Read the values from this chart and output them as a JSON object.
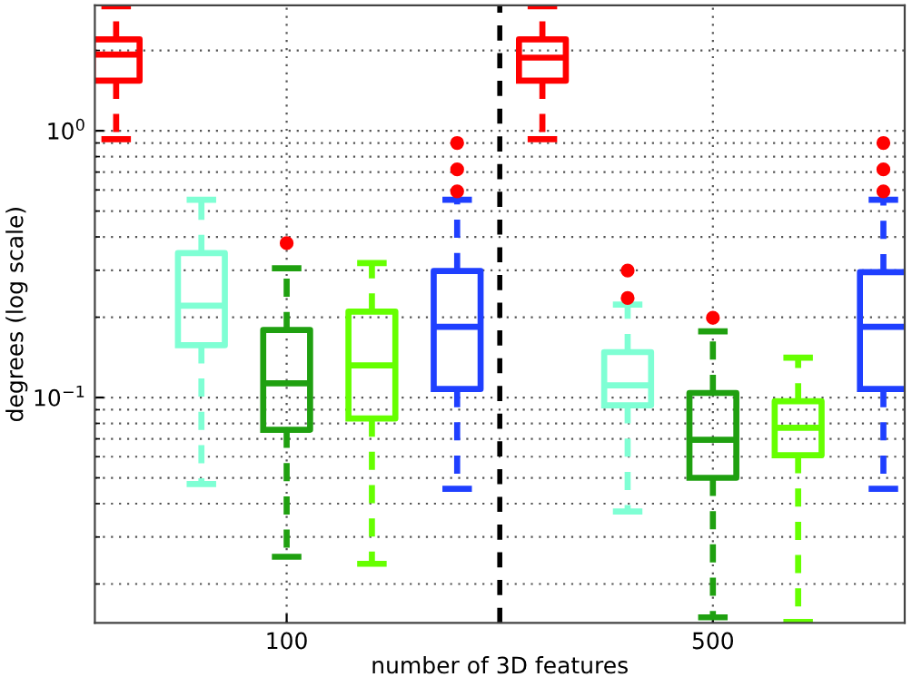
{
  "chart_data": {
    "type": "box",
    "xlabel": "number of 3D features",
    "ylabel": "degrees (log scale)",
    "log": "y",
    "grid": true,
    "line_style": "dashed",
    "legend": false,
    "categories": [
      null,
      null,
      "100",
      null,
      null,
      null,
      null,
      "500",
      null,
      null
    ],
    "ylim": [
      0.0143,
      2.95
    ],
    "yticks": [
      {
        "value": 0.1,
        "label": "10$^{−1}$"
      },
      {
        "value": 1,
        "label": "10$^{0}$"
      }
    ],
    "colors": [
      "#ff0000",
      "#7fffd4",
      "#1fa010",
      "#66ff00",
      "#1f3fff",
      "#ff0000",
      "#7fffd4",
      "#1fa010",
      "#66ff00",
      "#1f3fff"
    ],
    "boxes": [
      {
        "low": 0.93,
        "q1": 1.54,
        "median": 1.93,
        "q3": 2.2,
        "high": 2.93
      },
      {
        "low": 0.0474,
        "q1": 0.157,
        "median": 0.221,
        "q3": 0.348,
        "high": 0.551
      },
      {
        "low": 0.0253,
        "q1": 0.0757,
        "median": 0.113,
        "q3": 0.179,
        "high": 0.305,
        "outliers": [
          0.379
        ]
      },
      {
        "low": 0.0238,
        "q1": 0.0834,
        "median": 0.132,
        "q3": 0.21,
        "high": 0.319
      },
      {
        "low": 0.0455,
        "q1": 0.1076,
        "median": 0.184,
        "q3": 0.298,
        "high": 0.551,
        "outliers": [
          0.593,
          0.716,
          0.9
        ]
      },
      {
        "low": 0.93,
        "q1": 1.54,
        "median": 1.88,
        "q3": 2.2,
        "high": 2.93
      },
      {
        "low": 0.0374,
        "q1": 0.0935,
        "median": 0.111,
        "q3": 0.148,
        "high": 0.223,
        "outliers": [
          0.236,
          0.299
        ]
      },
      {
        "low": 0.015,
        "q1": 0.05,
        "median": 0.0694,
        "q3": 0.104,
        "high": 0.177,
        "outliers": [
          0.199
        ]
      },
      {
        "low": 0.0144,
        "q1": 0.0608,
        "median": 0.077,
        "q3": 0.0968,
        "high": 0.141
      },
      {
        "low": 0.0455,
        "q1": 0.1076,
        "median": 0.184,
        "q3": 0.295,
        "high": 0.551,
        "outliers": [
          0.593,
          0.716,
          0.9
        ]
      }
    ]
  }
}
